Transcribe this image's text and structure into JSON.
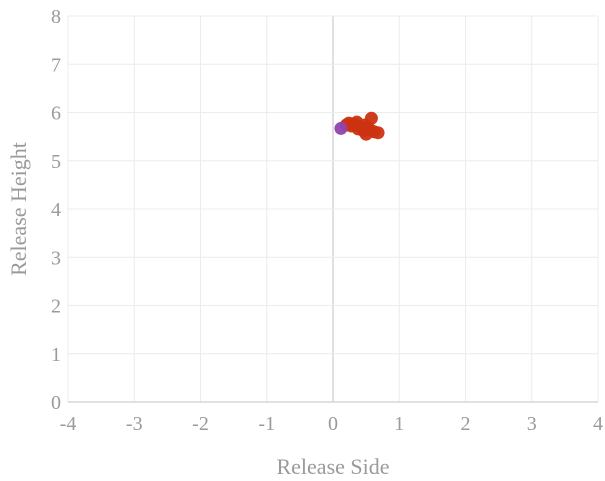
{
  "chart_data": {
    "type": "scatter",
    "xlabel": "Release Side",
    "ylabel": "Release Height",
    "xlim": [
      -4,
      4
    ],
    "ylim": [
      0,
      8
    ],
    "xticks": [
      -4,
      -3,
      -2,
      -1,
      0,
      1,
      2,
      3,
      4
    ],
    "yticks": [
      0,
      1,
      2,
      3,
      4,
      5,
      6,
      7,
      8
    ],
    "grid": true,
    "legend": "none",
    "series": [
      {
        "color": "#cc3311",
        "points": [
          {
            "x": 0.2,
            "y": 5.74
          },
          {
            "x": 0.24,
            "y": 5.78
          },
          {
            "x": 0.28,
            "y": 5.72
          },
          {
            "x": 0.32,
            "y": 5.76
          },
          {
            "x": 0.36,
            "y": 5.8
          },
          {
            "x": 0.38,
            "y": 5.66
          },
          {
            "x": 0.42,
            "y": 5.7
          },
          {
            "x": 0.46,
            "y": 5.62
          },
          {
            "x": 0.48,
            "y": 5.74
          },
          {
            "x": 0.5,
            "y": 5.55
          },
          {
            "x": 0.53,
            "y": 5.68
          },
          {
            "x": 0.56,
            "y": 5.64
          },
          {
            "x": 0.58,
            "y": 5.88
          },
          {
            "x": 0.62,
            "y": 5.6
          },
          {
            "x": 0.68,
            "y": 5.58
          }
        ]
      },
      {
        "color": "#8e44ad",
        "points": [
          {
            "x": 0.12,
            "y": 5.67
          }
        ]
      }
    ]
  }
}
